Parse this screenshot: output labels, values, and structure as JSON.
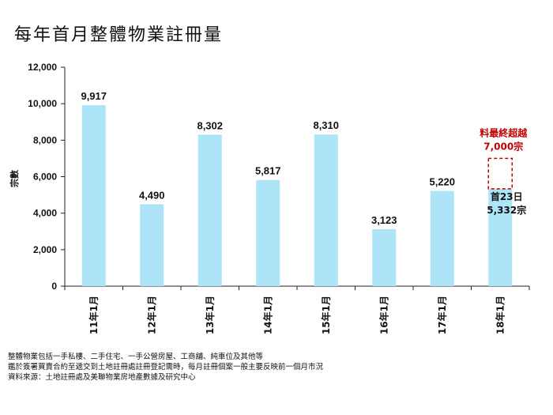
{
  "title": "每年首月整體物業註冊量",
  "chart_data": {
    "type": "bar",
    "title": "每年首月整體物業註冊量",
    "ylabel": "宗數",
    "xlabel": "",
    "ylim": [
      0,
      12000
    ],
    "yticks": [
      "0",
      "2,000",
      "4,000",
      "6,000",
      "8,000",
      "10,000",
      "12,000"
    ],
    "categories": [
      "11年1月",
      "12年1月",
      "13年1月",
      "14年1月",
      "15年1月",
      "16年1月",
      "17年1月",
      "18年1月"
    ],
    "values": [
      9917,
      4490,
      8302,
      5817,
      8310,
      3123,
      5220,
      5332
    ],
    "value_labels": [
      "9,917",
      "4,490",
      "8,302",
      "5,817",
      "8,310",
      "3,123",
      "5,220",
      ""
    ],
    "bar_color": "#aee4f7",
    "grid": false,
    "projection": {
      "value": 7000,
      "label_line1": "料最終超越",
      "label_line2": "7,000宗",
      "color": "#c00000",
      "style": "dashed"
    },
    "last_bar_annotation": {
      "line1": "首23日",
      "line2": "5,332宗"
    }
  },
  "notes": [
    "整體物業包括一手私樓、二手住宅、一手公營房屋、工商舖、純車位及其他等",
    "鑑於簽署買賣合約至遞交到土地註冊處註冊登記需時，每月註冊個案一般主要反映前一個月市況",
    "資料來源：土地註冊處及美聯物業房地產數據及研究中心"
  ]
}
